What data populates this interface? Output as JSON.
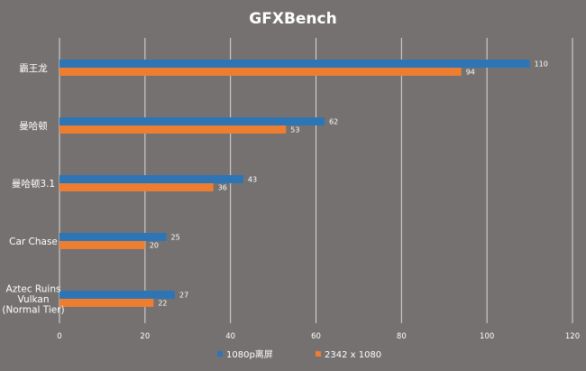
{
  "chart_data": {
    "type": "bar",
    "orientation": "horizontal",
    "title": "GFXBench",
    "categories": [
      [
        "霸王龙"
      ],
      [
        "曼哈顿"
      ],
      [
        "曼哈顿3.1"
      ],
      [
        "Car Chase"
      ],
      [
        "Aztec Ruins",
        "Vulkan",
        "(Normal Tier)"
      ]
    ],
    "series": [
      {
        "name": "1080p离屏",
        "color": "#2e75b6",
        "values": [
          110,
          62,
          43,
          25,
          27
        ]
      },
      {
        "name": "2342 x 1080",
        "color": "#ed7d31",
        "values": [
          94,
          53,
          36,
          20,
          22
        ]
      }
    ],
    "xlim": [
      0,
      120
    ],
    "xticks": [
      0,
      20,
      40,
      60,
      80,
      100,
      120
    ],
    "grid": true,
    "legend": "bottom",
    "data_labels": true
  }
}
